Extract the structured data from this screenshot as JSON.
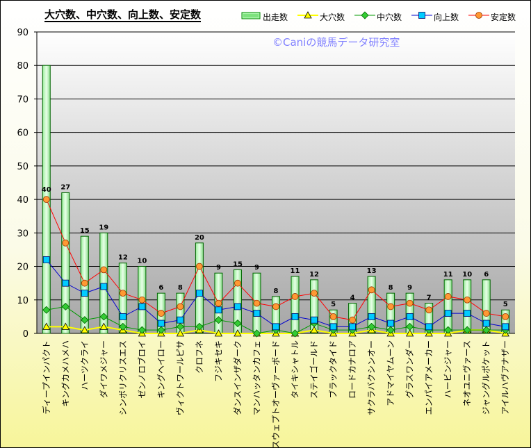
{
  "title": "大穴数、中穴数、向上数、安定数",
  "copyright": "©Caniの競馬データ研究室",
  "legend": [
    {
      "label": "出走数",
      "icon": "green-bar-icon"
    },
    {
      "label": "大穴数",
      "icon": "yellow-triangle-icon"
    },
    {
      "label": "中穴数",
      "icon": "green-diamond-icon"
    },
    {
      "label": "向上数",
      "icon": "cyan-square-icon"
    },
    {
      "label": "安定数",
      "icon": "orange-circle-icon"
    }
  ],
  "chart_data": {
    "type": "bar",
    "ylim": [
      0,
      90
    ],
    "yticks": [
      0,
      10,
      20,
      30,
      40,
      50,
      60,
      70,
      80,
      90
    ],
    "grid": true,
    "legend_position": "top",
    "categories": [
      "ディープインパクト",
      "キングカメハメハ",
      "ハーツクライ",
      "ダイワメジャー",
      "シンボリクリスエス",
      "ゼンノロブロイ",
      "キングヘイロー",
      "ヴィクトワールピサ",
      "クロフネ",
      "フジキセキ",
      "ダンスインザダーク",
      "マンハッタンカフェ",
      "スウェプトオーヴァーボード",
      "タイキシャトル",
      "ステイゴールド",
      "ブラックタイド",
      "ロードカナロア",
      "サクラバクシンオー",
      "アドマイヤムーン",
      "グラスワンダー",
      "エンパイアメーカー",
      "ハービンジャー",
      "ネオユニヴァース",
      "ジャングルポケット",
      "アイルハヴアナザー"
    ],
    "series": [
      {
        "name": "出走数",
        "type": "bar",
        "color": "#66dd66",
        "values": [
          80,
          42,
          29,
          30,
          21,
          20,
          12,
          12,
          27,
          18,
          19,
          18,
          11,
          17,
          16,
          7,
          9,
          17,
          12,
          12,
          9,
          16,
          16,
          16,
          7
        ]
      },
      {
        "name": "大穴数",
        "type": "line",
        "color": "#ffff00",
        "values": [
          2,
          2,
          1,
          2,
          1,
          0,
          0,
          0,
          1,
          0,
          0,
          0,
          0,
          0,
          1,
          0,
          0,
          1,
          0,
          0,
          0,
          0,
          1,
          1,
          0
        ]
      },
      {
        "name": "中穴数",
        "type": "line",
        "color": "#009900",
        "values": [
          7,
          8,
          4,
          5,
          2,
          1,
          1,
          2,
          2,
          4,
          3,
          0,
          1,
          0,
          3,
          1,
          1,
          2,
          1,
          2,
          1,
          1,
          1,
          1,
          1
        ]
      },
      {
        "name": "向上数",
        "type": "line",
        "color": "#0000cc",
        "values": [
          22,
          15,
          12,
          14,
          5,
          8,
          3,
          4,
          12,
          7,
          8,
          6,
          2,
          5,
          4,
          2,
          2,
          5,
          3,
          5,
          2,
          6,
          6,
          3,
          2
        ]
      },
      {
        "name": "安定数",
        "type": "line",
        "color": "#ff0000",
        "values": [
          40,
          27,
          15,
          19,
          12,
          10,
          6,
          8,
          20,
          9,
          15,
          9,
          8,
          11,
          12,
          5,
          4,
          13,
          8,
          9,
          7,
          11,
          10,
          6,
          5
        ]
      }
    ]
  }
}
